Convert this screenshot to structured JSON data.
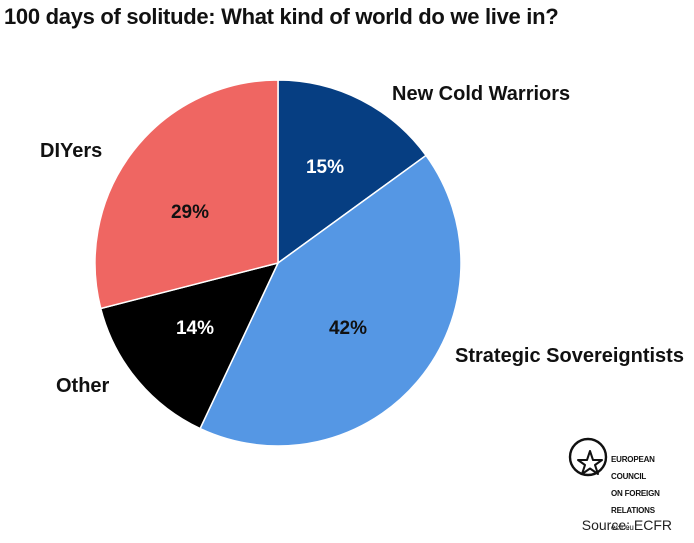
{
  "title": "100 days of solitude: What kind of world do we live in?",
  "source": "Source: ECFR",
  "logo": {
    "lines": [
      "EUROPEAN",
      "COUNCIL",
      "ON FOREIGN",
      "RELATIONS",
      "ecfr.eu"
    ]
  },
  "chart_data": {
    "type": "pie",
    "title": "100 days of solitude: What kind of world do we live in?",
    "start_angle_deg": 0,
    "direction": "clockwise",
    "slices": [
      {
        "label": "New Cold Warriors",
        "value": 15,
        "display": "15%",
        "color": "#063E82",
        "text_color": "#ffffff"
      },
      {
        "label": "Strategic Sovereigntists",
        "value": 42,
        "display": "42%",
        "color": "#5597E4",
        "text_color": "#111111"
      },
      {
        "label": "Other",
        "value": 14,
        "display": "14%",
        "color": "#000000",
        "text_color": "#ffffff"
      },
      {
        "label": "DIYers",
        "value": 29,
        "display": "29%",
        "color": "#EF6662",
        "text_color": "#111111"
      }
    ]
  }
}
